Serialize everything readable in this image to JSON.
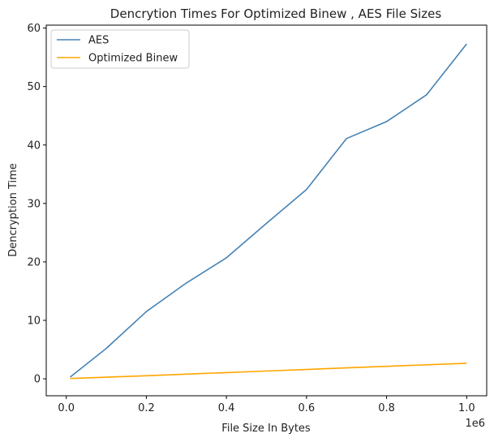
{
  "chart_data": {
    "type": "line",
    "title": "Dencrytion Times For Optimized Binew , AES File Sizes",
    "xlabel": "File Size In Bytes",
    "ylabel": "Dencryption Time",
    "x_offset_label": "1e6",
    "x": [
      10000,
      100000,
      200000,
      300000,
      400000,
      500000,
      600000,
      700000,
      800000,
      900000,
      1000000
    ],
    "x_ticks": [
      0,
      200000,
      400000,
      600000,
      800000,
      1000000
    ],
    "x_tick_labels": [
      "0.0",
      "0.2",
      "0.4",
      "0.6",
      "0.8",
      "1.0"
    ],
    "y_ticks": [
      0,
      10,
      20,
      30,
      40,
      50,
      60
    ],
    "y_tick_labels": [
      "0",
      "10",
      "20",
      "30",
      "40",
      "50",
      "60"
    ],
    "xlim": [
      -50000,
      1050000
    ],
    "ylim": [
      -2.9,
      60.5
    ],
    "grid": false,
    "legend_position": "top-left",
    "series": [
      {
        "name": "AES",
        "color": "#4682b4",
        "values": [
          0.3,
          5.2,
          11.5,
          16.4,
          20.7,
          26.6,
          32.4,
          41.1,
          44.0,
          48.6,
          57.3
        ]
      },
      {
        "name": "Optimized Binew",
        "color": "#ffa500",
        "values": [
          0.05,
          0.27,
          0.53,
          0.8,
          1.07,
          1.33,
          1.6,
          1.87,
          2.13,
          2.4,
          2.67
        ]
      }
    ]
  }
}
